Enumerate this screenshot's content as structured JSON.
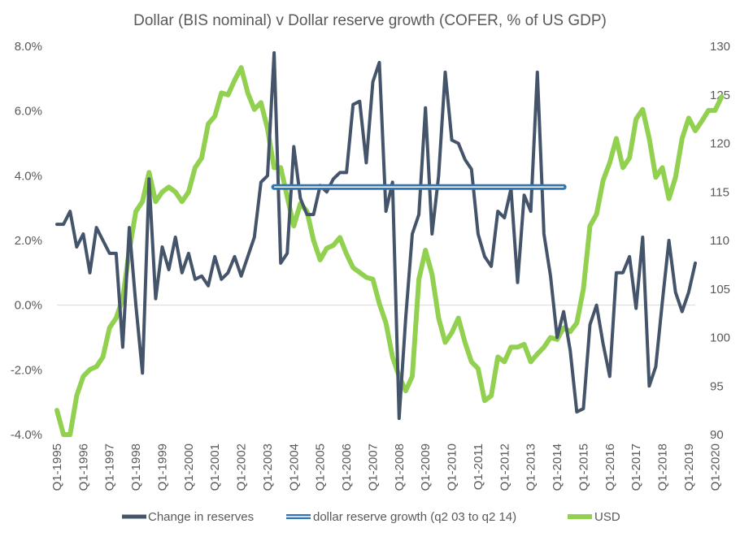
{
  "chart_data": {
    "type": "line",
    "title": "Dollar (BIS nominal) v Dollar reserve growth (COFER, % of US GDP)",
    "x_tick_labels": [
      "Q1-1995",
      "Q1-1996",
      "Q1-1997",
      "Q1-1998",
      "Q1-1999",
      "Q1-2000",
      "Q1-2001",
      "Q1-2002",
      "Q1-2003",
      "Q1-2004",
      "Q1-2005",
      "Q1-2006",
      "Q1-2007",
      "Q1-2008",
      "Q1-2009",
      "Q1-2010",
      "Q1-2011",
      "Q1-2012",
      "Q1-2013",
      "Q1-2014",
      "Q1-2015",
      "Q1-2016",
      "Q1-2017",
      "Q1-2018",
      "Q1-2019",
      "Q1-2020"
    ],
    "y_left": {
      "min": -4,
      "max": 8,
      "step": 2,
      "tick_labels": [
        "-4.0%",
        "-2.0%",
        "0.0%",
        "2.0%",
        "4.0%",
        "6.0%",
        "8.0%"
      ]
    },
    "y_right": {
      "min": 90,
      "max": 130,
      "step": 5,
      "tick_labels": [
        "90",
        "95",
        "100",
        "105",
        "110",
        "115",
        "120",
        "125",
        "130"
      ]
    },
    "grid": "zero line only",
    "legend_position": "bottom",
    "series": [
      {
        "name": "Change in reserves",
        "axis": "left",
        "color": "#44546a",
        "values": [
          2.5,
          2.5,
          2.9,
          1.8,
          2.2,
          1.0,
          2.4,
          2.0,
          1.6,
          1.6,
          -1.3,
          2.4,
          0.0,
          -2.1,
          3.9,
          0.2,
          1.8,
          1.1,
          2.1,
          1.0,
          1.6,
          0.8,
          0.9,
          0.6,
          1.5,
          0.8,
          1.0,
          1.5,
          0.9,
          1.5,
          2.1,
          3.8,
          4.0,
          7.8,
          1.3,
          1.6,
          4.9,
          3.3,
          2.8,
          2.8,
          3.7,
          3.5,
          3.9,
          4.1,
          4.1,
          6.2,
          6.3,
          4.4,
          6.9,
          7.5,
          2.9,
          3.8,
          -3.5,
          -0.4,
          2.2,
          2.8,
          6.1,
          2.2,
          4.0,
          7.2,
          5.1,
          5.0,
          4.5,
          4.2,
          2.2,
          1.5,
          1.2,
          2.9,
          2.7,
          3.6,
          0.7,
          3.4,
          2.9,
          7.2,
          2.2,
          0.9,
          -1.0,
          -0.2,
          -1.4,
          -3.3,
          -3.2,
          -0.6,
          0.0,
          -1.2,
          -2.2,
          1.0,
          1.0,
          1.5,
          -0.1,
          2.1,
          -2.5,
          -1.9,
          0.1,
          2.0,
          0.4,
          -0.2,
          0.4,
          1.3
        ]
      },
      {
        "name": "dollar reserve growth (q2 03 to q2 14)",
        "axis": "left",
        "color": "#2e75b6",
        "x_range": [
          "Q2-2003",
          "Q2-2014"
        ],
        "value": 3.65
      },
      {
        "name": "USD",
        "axis": "right",
        "color": "#92d050",
        "values": [
          92.5,
          90,
          90,
          94,
          96,
          96.7,
          97,
          98,
          101,
          102,
          104,
          109,
          113,
          114,
          117,
          114,
          115,
          115.5,
          115,
          114,
          115,
          117.5,
          118.5,
          122,
          122.8,
          125.2,
          125,
          126.5,
          127.8,
          125.2,
          123.5,
          124.2,
          121.5,
          117.5,
          117.5,
          114.5,
          111.5,
          113.8,
          113,
          110,
          108,
          109.2,
          109.5,
          110.3,
          108.6,
          107.2,
          106.7,
          106.2,
          106,
          103.5,
          101.5,
          98,
          96,
          94.5,
          96,
          106,
          109,
          106.5,
          102,
          99.5,
          100.5,
          102,
          99.5,
          97.5,
          96.8,
          93.5,
          94,
          98,
          97.5,
          99,
          99,
          99.3,
          97.5,
          98.3,
          99,
          100,
          99.8,
          101,
          100.6,
          101.5,
          105,
          111.5,
          112.7,
          116.2,
          118,
          120.5,
          117.5,
          118.5,
          122.5,
          123.5,
          120.5,
          116.5,
          117.5,
          114.3,
          116.5,
          120.5,
          122.6,
          121.3,
          122.3,
          123.4,
          123.4,
          124.8
        ]
      }
    ]
  }
}
